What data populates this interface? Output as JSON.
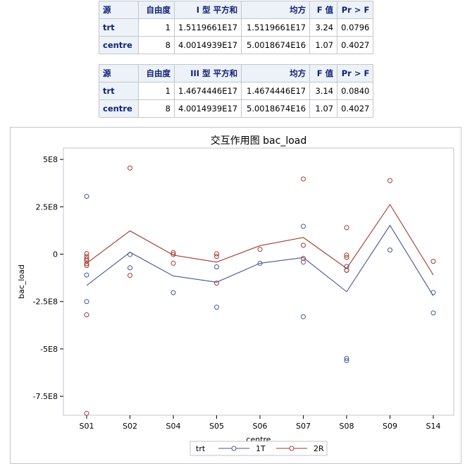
{
  "table1": {
    "headers": [
      "源",
      "自由度",
      "I 型 平方和",
      "均方",
      "F 值",
      "Pr > F"
    ],
    "rows": [
      {
        "source": "trt",
        "df": "1",
        "ss": "1.5119661E17",
        "ms": "1.5119661E17",
        "f": "3.24",
        "p": "0.0796"
      },
      {
        "source": "centre",
        "df": "8",
        "ss": "4.0014939E17",
        "ms": "5.0018674E16",
        "f": "1.07",
        "p": "0.4027"
      }
    ]
  },
  "table2": {
    "headers": [
      "源",
      "自由度",
      "III 型 平方和",
      "均方",
      "F 值",
      "Pr > F"
    ],
    "rows": [
      {
        "source": "trt",
        "df": "1",
        "ss": "1.4674446E17",
        "ms": "1.4674446E17",
        "f": "3.14",
        "p": "0.0840"
      },
      {
        "source": "centre",
        "df": "8",
        "ss": "4.0014939E17",
        "ms": "5.0018674E16",
        "f": "1.07",
        "p": "0.4027"
      }
    ]
  },
  "chart_data": {
    "type": "line",
    "title": "交互作用图  bac_load",
    "xlabel": "centre",
    "ylabel": "bac_load",
    "categories": [
      "S01",
      "S02",
      "S04",
      "S05",
      "S06",
      "S07",
      "S08",
      "S09",
      "S14"
    ],
    "ylim": [
      -850000000,
      560000000
    ],
    "yticks": [
      500000000,
      250000000,
      0,
      -250000000,
      -500000000,
      -750000000
    ],
    "ytick_labels": [
      "5E8",
      "2.5E8",
      "0",
      "-2.5E8",
      "-5E8",
      "-7.5E8"
    ],
    "legend_title": "trt",
    "legend_position": "bottom",
    "grid": false,
    "series": [
      {
        "name": "1T",
        "color": "#445694",
        "line": [
          -165000000,
          10000000,
          -115000000,
          -148000000,
          -48000000,
          -18000000,
          -198000000,
          152000000,
          -220000000
        ],
        "points": [
          [
            0,
            305000000
          ],
          [
            0,
            -110000000
          ],
          [
            0,
            -250000000
          ],
          [
            1,
            -72000000
          ],
          [
            1,
            -2000000
          ],
          [
            2,
            -203000000
          ],
          [
            3,
            -67000000
          ],
          [
            3,
            -280000000
          ],
          [
            4,
            -48000000
          ],
          [
            5,
            147000000
          ],
          [
            5,
            -42000000
          ],
          [
            5,
            -330000000
          ],
          [
            6,
            -65000000
          ],
          [
            6,
            -85000000
          ],
          [
            6,
            -550000000
          ],
          [
            6,
            -562000000
          ],
          [
            7,
            22000000
          ],
          [
            8,
            -202000000
          ],
          [
            8,
            -310000000
          ]
        ]
      },
      {
        "name": "2R",
        "color": "#a23a2e",
        "line": [
          -48000000,
          123000000,
          -5000000,
          -42000000,
          45000000,
          88000000,
          -75000000,
          262000000,
          -110000000
        ],
        "points": [
          [
            0,
            3000000
          ],
          [
            0,
            -12000000
          ],
          [
            0,
            -25000000
          ],
          [
            0,
            -35000000
          ],
          [
            0,
            -50000000
          ],
          [
            0,
            -60000000
          ],
          [
            0,
            -320000000
          ],
          [
            0,
            -840000000
          ],
          [
            1,
            455000000
          ],
          [
            1,
            -112000000
          ],
          [
            2,
            8000000
          ],
          [
            2,
            -2000000
          ],
          [
            2,
            -48000000
          ],
          [
            3,
            2000000
          ],
          [
            3,
            -12000000
          ],
          [
            3,
            -153000000
          ],
          [
            4,
            25000000
          ],
          [
            5,
            397000000
          ],
          [
            5,
            47000000
          ],
          [
            5,
            -22000000
          ],
          [
            6,
            140000000
          ],
          [
            6,
            -5000000
          ],
          [
            6,
            -17000000
          ],
          [
            6,
            -85000000
          ],
          [
            7,
            388000000
          ],
          [
            8,
            -38000000
          ]
        ]
      }
    ]
  }
}
